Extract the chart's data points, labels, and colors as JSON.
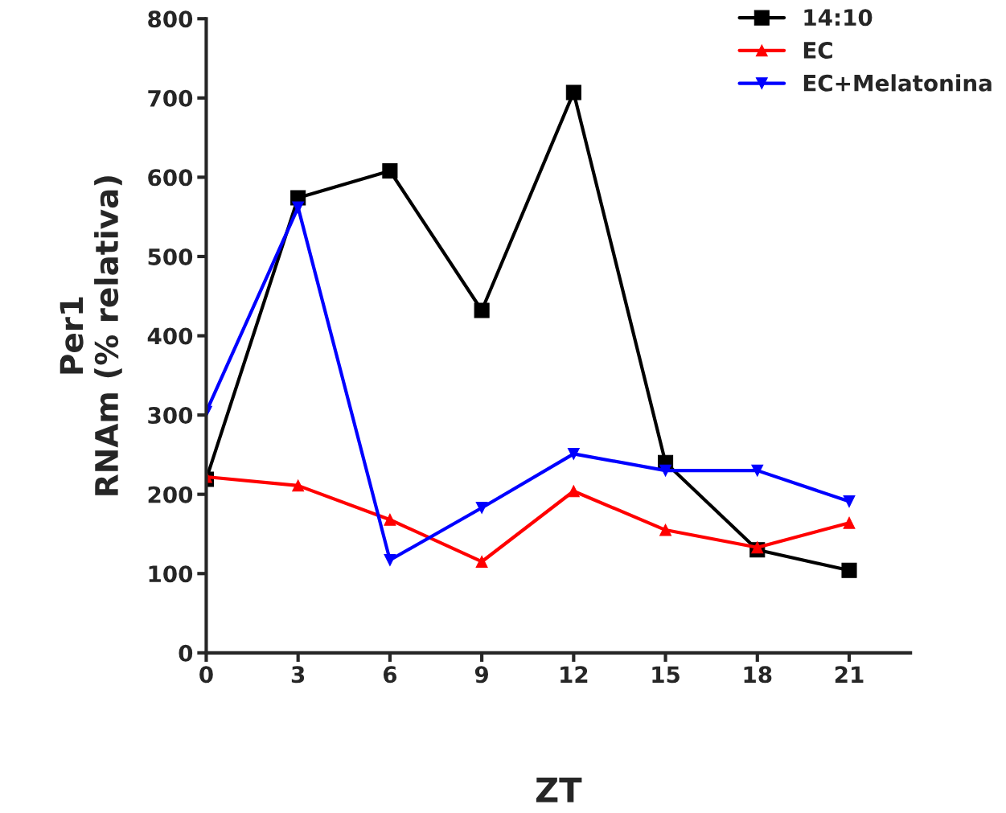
{
  "chart_data": {
    "type": "line",
    "xlabel": "ZT",
    "ylabel": "Per1\nRNAm (% relativa)",
    "x": [
      0,
      3,
      6,
      9,
      12,
      15,
      18,
      21
    ],
    "series": [
      {
        "name": "14:10",
        "color": "#000000",
        "marker": "square",
        "values": [
          219,
          574,
          608,
          432,
          707,
          240,
          130,
          104
        ]
      },
      {
        "name": "EC",
        "color": "#ff0000",
        "marker": "triangle",
        "values": [
          222,
          211,
          168,
          115,
          204,
          155,
          133,
          164
        ]
      },
      {
        "name": "EC+Melatonina",
        "color": "#0000ff",
        "marker": "triangle_down",
        "values": [
          304,
          562,
          117,
          183,
          251,
          230,
          230,
          191
        ]
      }
    ],
    "xlim": [
      0,
      23
    ],
    "xticks": [
      0,
      3,
      6,
      9,
      12,
      15,
      18,
      21
    ],
    "ylim": [
      0,
      800
    ],
    "yticks": [
      0,
      100,
      200,
      300,
      400,
      500,
      600,
      700,
      800
    ],
    "grid": false,
    "legend": "top right",
    "line_style": "solid"
  }
}
